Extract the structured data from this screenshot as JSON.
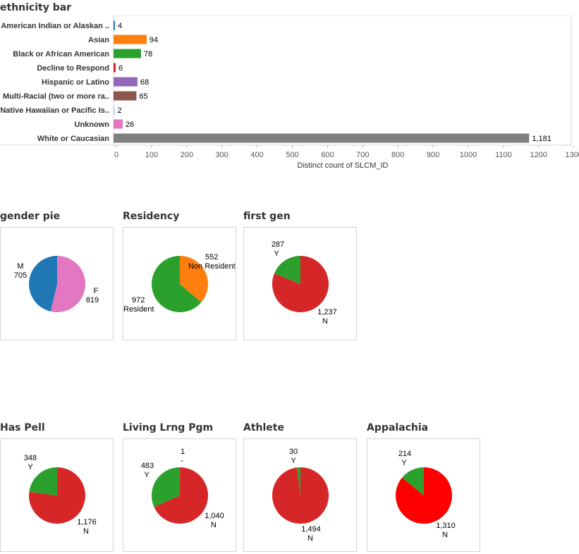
{
  "titles": {
    "ethnicity": "ethnicity bar",
    "gender": "gender pie",
    "residency": "Residency",
    "firstgen": "first gen",
    "pell": "Has Pell",
    "living": "Living Lrng Pgm",
    "athlete": "Athlete",
    "appalachia": "Appalachia"
  },
  "chart_data": [
    {
      "id": "ethnicity",
      "type": "bar",
      "orientation": "horizontal",
      "title": "ethnicity bar",
      "xlabel": "Distinct count of SLCM_ID",
      "xlim": [
        0,
        1300
      ],
      "xticks": [
        0,
        100,
        200,
        300,
        400,
        500,
        600,
        700,
        800,
        900,
        1000,
        1100,
        1200,
        1300
      ],
      "categories": [
        "American Indian or Alaskan ..",
        "Asian",
        "Black or African American",
        "Decline to Respond",
        "Hispanic or Latino",
        "Multi-Racial (two or more ra..",
        "Native Hawaiian or Pacific Is..",
        "Unknown",
        "White or Caucasian"
      ],
      "values": [
        4,
        94,
        78,
        6,
        68,
        65,
        2,
        26,
        1181
      ],
      "value_labels": [
        "4",
        "94",
        "78",
        "6",
        "68",
        "65",
        "2",
        "26",
        "1,181"
      ],
      "colors": [
        "#1f77b4",
        "#ff7f0e",
        "#2ca02c",
        "#d62728",
        "#9467bd",
        "#8c564b",
        "#9edae5",
        "#e377c2",
        "#7f7f7f"
      ]
    },
    {
      "id": "gender",
      "type": "pie",
      "title": "gender pie",
      "slices": [
        {
          "label": "F",
          "value": 819,
          "value_label": "819",
          "color": "#e377c2"
        },
        {
          "label": "M",
          "value": 705,
          "value_label": "705",
          "color": "#1f77b4"
        }
      ]
    },
    {
      "id": "residency",
      "type": "pie",
      "title": "Residency",
      "slices": [
        {
          "label": "Non Resident",
          "value": 552,
          "value_label": "552",
          "color": "#ff7f0e"
        },
        {
          "label": "Resident",
          "value": 972,
          "value_label": "972",
          "color": "#2ca02c"
        }
      ]
    },
    {
      "id": "firstgen",
      "type": "pie",
      "title": "first gen",
      "slices": [
        {
          "label": "N",
          "value": 1237,
          "value_label": "1,237",
          "color": "#d62728"
        },
        {
          "label": "Y",
          "value": 287,
          "value_label": "287",
          "color": "#2ca02c"
        }
      ]
    },
    {
      "id": "pell",
      "type": "pie",
      "title": "Has Pell",
      "slices": [
        {
          "label": "N",
          "value": 1176,
          "value_label": "1,176",
          "color": "#d62728"
        },
        {
          "label": "Y",
          "value": 348,
          "value_label": "348",
          "color": "#2ca02c"
        }
      ]
    },
    {
      "id": "living",
      "type": "pie",
      "title": "Living Lrng Pgm",
      "slices": [
        {
          "label": "-",
          "value": 1,
          "value_label": "1",
          "color": "#8c564b"
        },
        {
          "label": "N",
          "value": 1040,
          "value_label": "1,040",
          "color": "#d62728"
        },
        {
          "label": "Y",
          "value": 483,
          "value_label": "483",
          "color": "#2ca02c"
        }
      ]
    },
    {
      "id": "athlete",
      "type": "pie",
      "title": "Athlete",
      "slices": [
        {
          "label": "N",
          "value": 1494,
          "value_label": "1,494",
          "color": "#d62728"
        },
        {
          "label": "Y",
          "value": 30,
          "value_label": "30",
          "color": "#2ca02c"
        }
      ]
    },
    {
      "id": "appalachia",
      "type": "pie",
      "title": "Appalachia",
      "slices": [
        {
          "label": "N",
          "value": 1310,
          "value_label": "1,310",
          "color": "#ff0000"
        },
        {
          "label": "Y",
          "value": 214,
          "value_label": "214",
          "color": "#2ca02c"
        }
      ]
    }
  ]
}
